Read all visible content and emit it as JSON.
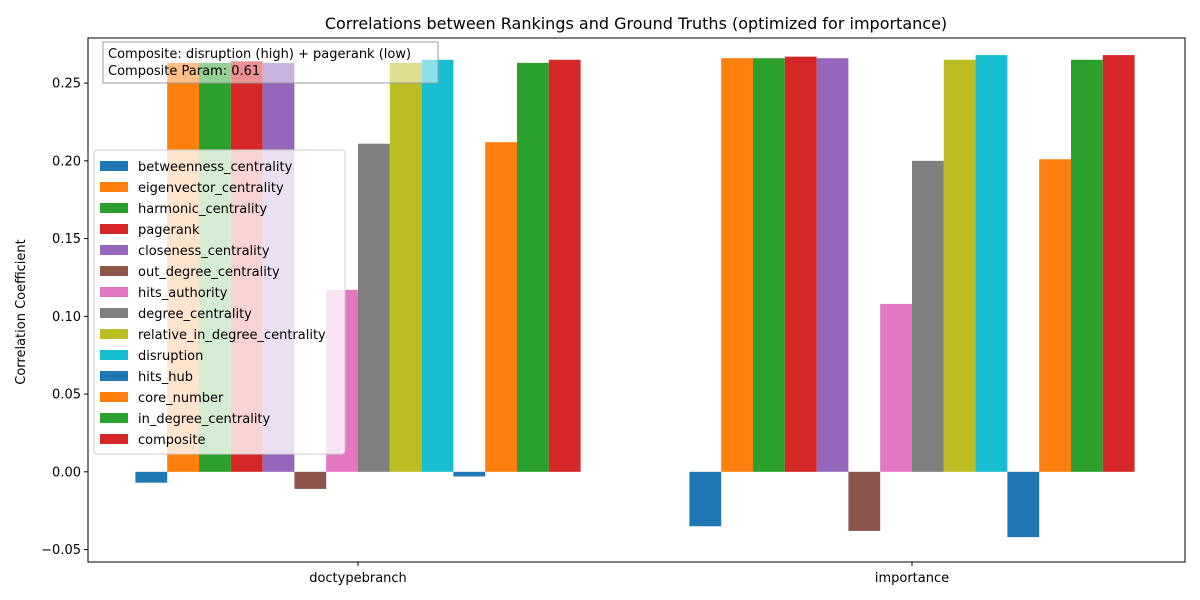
{
  "chart_data": {
    "type": "bar",
    "title": "Correlations between Rankings and Ground Truths (optimized for importance)",
    "xlabel": "",
    "ylabel": "Correlation Coefficient",
    "categories": [
      "doctypebranch",
      "importance"
    ],
    "ylim": [
      -0.058,
      0.279
    ],
    "yticks": [
      -0.05,
      0.0,
      0.05,
      0.1,
      0.15,
      0.2,
      0.25
    ],
    "ytick_labels": [
      "−0.05",
      "0.00",
      "0.05",
      "0.10",
      "0.15",
      "0.20",
      "0.25"
    ],
    "grid": false,
    "legend_position": "center-left",
    "annotation": {
      "line1": "Composite: disruption (high) + pagerank (low)",
      "line2": "Composite Param: 0.61"
    },
    "series": [
      {
        "name": "betweenness_centrality",
        "color": "#1f77b4",
        "values": [
          -0.007,
          -0.035
        ]
      },
      {
        "name": "eigenvector_centrality",
        "color": "#ff7f0e",
        "values": [
          0.263,
          0.266
        ]
      },
      {
        "name": "harmonic_centrality",
        "color": "#2ca02c",
        "values": [
          0.263,
          0.266
        ]
      },
      {
        "name": "pagerank",
        "color": "#d62728",
        "values": [
          0.264,
          0.267
        ]
      },
      {
        "name": "closeness_centrality",
        "color": "#9467bd",
        "values": [
          0.263,
          0.266
        ]
      },
      {
        "name": "out_degree_centrality",
        "color": "#8c564b",
        "values": [
          -0.011,
          -0.038
        ]
      },
      {
        "name": "hits_authority",
        "color": "#e377c2",
        "values": [
          0.117,
          0.108
        ]
      },
      {
        "name": "degree_centrality",
        "color": "#7f7f7f",
        "values": [
          0.211,
          0.2
        ]
      },
      {
        "name": "relative_in_degree_centrality",
        "color": "#bcbd22",
        "values": [
          0.263,
          0.265
        ]
      },
      {
        "name": "disruption",
        "color": "#17becf",
        "values": [
          0.265,
          0.268
        ]
      },
      {
        "name": "hits_hub",
        "color": "#1f77b4",
        "values": [
          -0.003,
          -0.042
        ]
      },
      {
        "name": "core_number",
        "color": "#ff7f0e",
        "values": [
          0.212,
          0.201
        ]
      },
      {
        "name": "in_degree_centrality",
        "color": "#2ca02c",
        "values": [
          0.263,
          0.265
        ]
      },
      {
        "name": "composite",
        "color": "#d62728",
        "values": [
          0.265,
          0.268
        ]
      }
    ]
  }
}
